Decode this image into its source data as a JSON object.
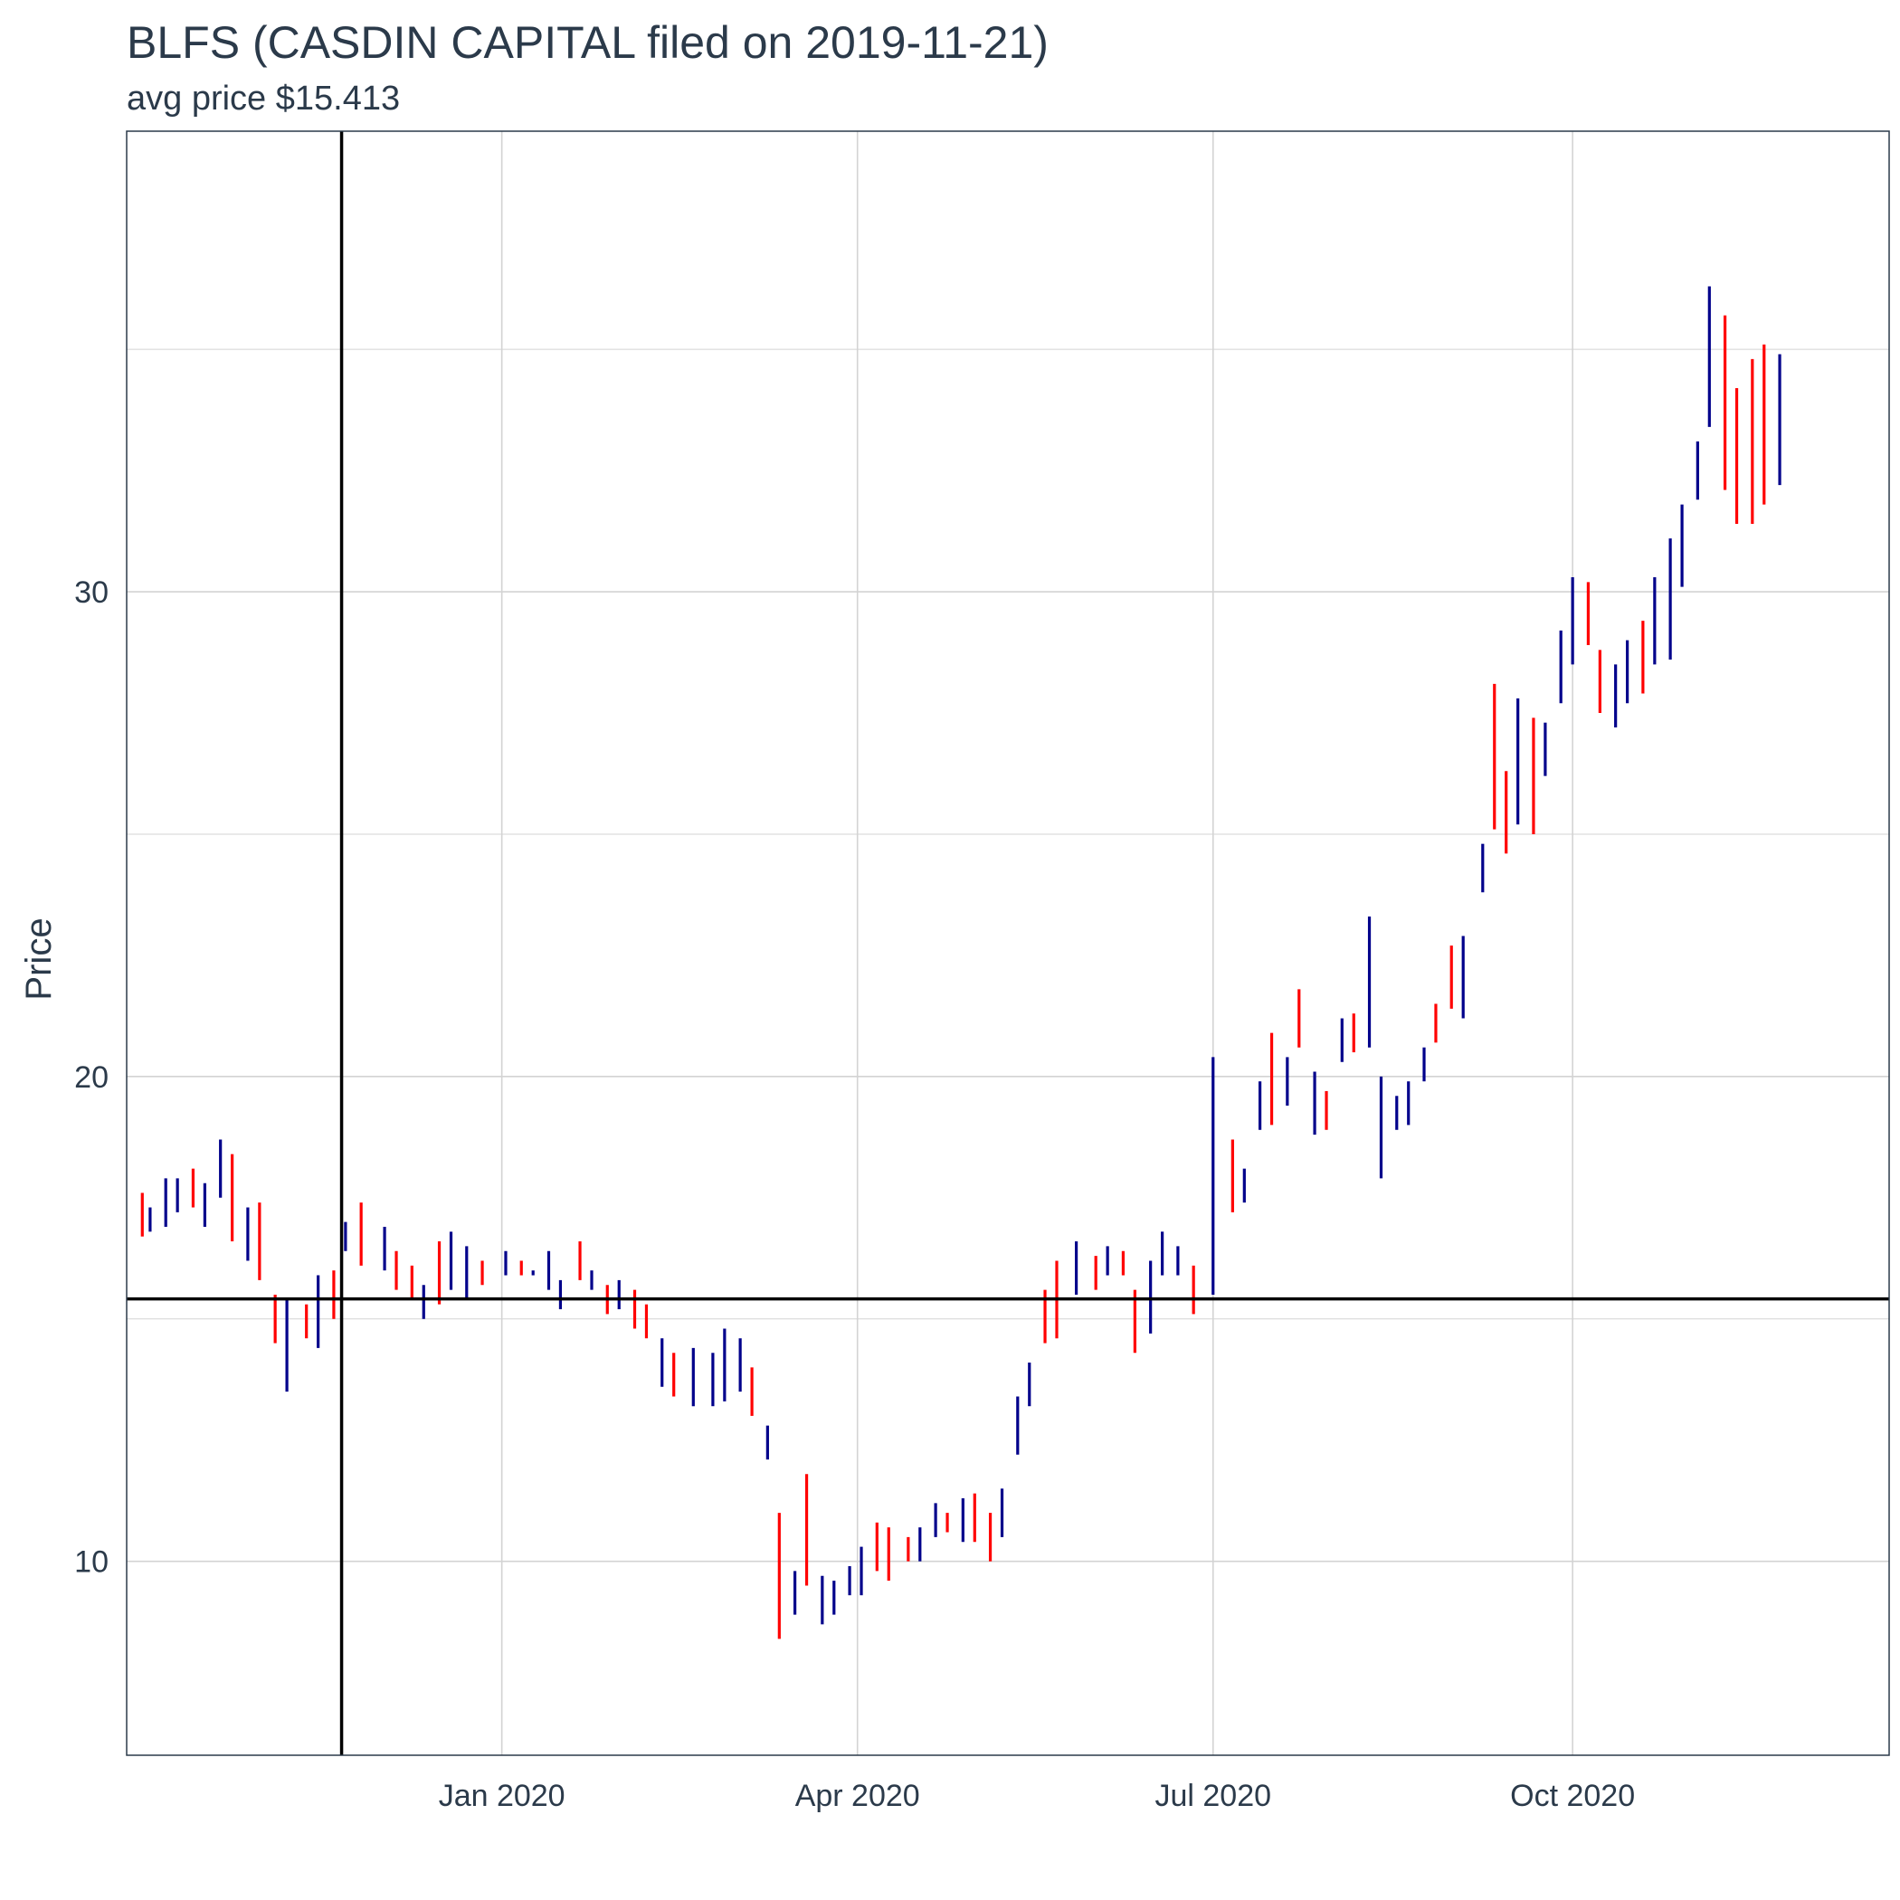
{
  "chart_data": {
    "type": "ohlc",
    "title": "BLFS (CASDIN CAPITAL filed on 2019-11-21)",
    "subtitle": "avg price $15.413",
    "ylabel": "Price",
    "xlabel": "",
    "ylim": [
      6.0,
      39.5
    ],
    "xlim": [
      "2019-09-27",
      "2020-12-21"
    ],
    "y_ticks": [
      10,
      20,
      30
    ],
    "x_ticks": [
      {
        "date": "2020-01-01",
        "label": "Jan 2020"
      },
      {
        "date": "2020-04-01",
        "label": "Apr 2020"
      },
      {
        "date": "2020-07-01",
        "label": "Jul 2020"
      },
      {
        "date": "2020-10-01",
        "label": "Oct 2020"
      }
    ],
    "avg_price_line": 15.413,
    "filing_date_line": "2019-11-21",
    "grid": true,
    "colors": {
      "up": "#00008b",
      "down": "#ff0000",
      "ref": "#000000",
      "grid": "#d3d3d3",
      "text": "#2b3a4a"
    },
    "series": [
      {
        "date": "2019-10-01",
        "low": 16.7,
        "high": 17.6,
        "dir": "down"
      },
      {
        "date": "2019-10-03",
        "low": 16.8,
        "high": 17.3,
        "dir": "up"
      },
      {
        "date": "2019-10-07",
        "low": 16.9,
        "high": 17.9,
        "dir": "up"
      },
      {
        "date": "2019-10-10",
        "low": 17.2,
        "high": 17.9,
        "dir": "up"
      },
      {
        "date": "2019-10-14",
        "low": 17.3,
        "high": 18.1,
        "dir": "down"
      },
      {
        "date": "2019-10-17",
        "low": 16.9,
        "high": 17.8,
        "dir": "up"
      },
      {
        "date": "2019-10-21",
        "low": 17.5,
        "high": 18.7,
        "dir": "up"
      },
      {
        "date": "2019-10-24",
        "low": 16.6,
        "high": 18.4,
        "dir": "down"
      },
      {
        "date": "2019-10-28",
        "low": 16.2,
        "high": 17.3,
        "dir": "up"
      },
      {
        "date": "2019-10-31",
        "low": 15.8,
        "high": 17.4,
        "dir": "down"
      },
      {
        "date": "2019-11-04",
        "low": 14.5,
        "high": 15.5,
        "dir": "down"
      },
      {
        "date": "2019-11-07",
        "low": 13.5,
        "high": 15.4,
        "dir": "up"
      },
      {
        "date": "2019-11-12",
        "low": 14.6,
        "high": 15.3,
        "dir": "down"
      },
      {
        "date": "2019-11-15",
        "low": 14.4,
        "high": 15.9,
        "dir": "up"
      },
      {
        "date": "2019-11-19",
        "low": 15.0,
        "high": 16.0,
        "dir": "down"
      },
      {
        "date": "2019-11-22",
        "low": 16.4,
        "high": 17.0,
        "dir": "up"
      },
      {
        "date": "2019-11-26",
        "low": 16.1,
        "high": 17.4,
        "dir": "down"
      },
      {
        "date": "2019-12-02",
        "low": 16.0,
        "high": 16.9,
        "dir": "up"
      },
      {
        "date": "2019-12-05",
        "low": 15.6,
        "high": 16.4,
        "dir": "down"
      },
      {
        "date": "2019-12-09",
        "low": 15.4,
        "high": 16.1,
        "dir": "down"
      },
      {
        "date": "2019-12-12",
        "low": 15.0,
        "high": 15.7,
        "dir": "up"
      },
      {
        "date": "2019-12-16",
        "low": 15.3,
        "high": 16.6,
        "dir": "down"
      },
      {
        "date": "2019-12-19",
        "low": 15.6,
        "high": 16.8,
        "dir": "up"
      },
      {
        "date": "2019-12-23",
        "low": 15.4,
        "high": 16.5,
        "dir": "up"
      },
      {
        "date": "2019-12-27",
        "low": 15.7,
        "high": 16.2,
        "dir": "down"
      },
      {
        "date": "2020-01-02",
        "low": 15.9,
        "high": 16.4,
        "dir": "up"
      },
      {
        "date": "2020-01-06",
        "low": 15.9,
        "high": 16.2,
        "dir": "down"
      },
      {
        "date": "2020-01-09",
        "low": 15.9,
        "high": 16.0,
        "dir": "up"
      },
      {
        "date": "2020-01-13",
        "low": 15.6,
        "high": 16.4,
        "dir": "up"
      },
      {
        "date": "2020-01-16",
        "low": 15.2,
        "high": 15.8,
        "dir": "up"
      },
      {
        "date": "2020-01-21",
        "low": 15.8,
        "high": 16.6,
        "dir": "down"
      },
      {
        "date": "2020-01-24",
        "low": 15.6,
        "high": 16.0,
        "dir": "up"
      },
      {
        "date": "2020-01-28",
        "low": 15.1,
        "high": 15.7,
        "dir": "down"
      },
      {
        "date": "2020-01-31",
        "low": 15.2,
        "high": 15.8,
        "dir": "up"
      },
      {
        "date": "2020-02-04",
        "low": 14.8,
        "high": 15.6,
        "dir": "down"
      },
      {
        "date": "2020-02-07",
        "low": 14.6,
        "high": 15.3,
        "dir": "down"
      },
      {
        "date": "2020-02-11",
        "low": 13.6,
        "high": 14.6,
        "dir": "up"
      },
      {
        "date": "2020-02-14",
        "low": 13.4,
        "high": 14.3,
        "dir": "down"
      },
      {
        "date": "2020-02-19",
        "low": 13.2,
        "high": 14.4,
        "dir": "up"
      },
      {
        "date": "2020-02-24",
        "low": 13.2,
        "high": 14.3,
        "dir": "up"
      },
      {
        "date": "2020-02-27",
        "low": 13.3,
        "high": 14.8,
        "dir": "up"
      },
      {
        "date": "2020-03-02",
        "low": 13.5,
        "high": 14.6,
        "dir": "up"
      },
      {
        "date": "2020-03-05",
        "low": 13.0,
        "high": 14.0,
        "dir": "down"
      },
      {
        "date": "2020-03-09",
        "low": 12.1,
        "high": 12.8,
        "dir": "up"
      },
      {
        "date": "2020-03-12",
        "low": 8.4,
        "high": 11.0,
        "dir": "down"
      },
      {
        "date": "2020-03-16",
        "low": 8.9,
        "high": 9.8,
        "dir": "up"
      },
      {
        "date": "2020-03-19",
        "low": 9.5,
        "high": 11.8,
        "dir": "down"
      },
      {
        "date": "2020-03-23",
        "low": 8.7,
        "high": 9.7,
        "dir": "up"
      },
      {
        "date": "2020-03-26",
        "low": 8.9,
        "high": 9.6,
        "dir": "up"
      },
      {
        "date": "2020-03-30",
        "low": 9.3,
        "high": 9.9,
        "dir": "up"
      },
      {
        "date": "2020-04-02",
        "low": 9.3,
        "high": 10.3,
        "dir": "up"
      },
      {
        "date": "2020-04-06",
        "low": 9.8,
        "high": 10.8,
        "dir": "down"
      },
      {
        "date": "2020-04-09",
        "low": 9.6,
        "high": 10.7,
        "dir": "down"
      },
      {
        "date": "2020-04-14",
        "low": 10.0,
        "high": 10.5,
        "dir": "down"
      },
      {
        "date": "2020-04-17",
        "low": 10.0,
        "high": 10.7,
        "dir": "up"
      },
      {
        "date": "2020-04-21",
        "low": 10.5,
        "high": 11.2,
        "dir": "up"
      },
      {
        "date": "2020-04-24",
        "low": 10.6,
        "high": 11.0,
        "dir": "down"
      },
      {
        "date": "2020-04-28",
        "low": 10.4,
        "high": 11.3,
        "dir": "up"
      },
      {
        "date": "2020-05-01",
        "low": 10.4,
        "high": 11.4,
        "dir": "down"
      },
      {
        "date": "2020-05-05",
        "low": 10.0,
        "high": 11.0,
        "dir": "down"
      },
      {
        "date": "2020-05-08",
        "low": 10.5,
        "high": 11.5,
        "dir": "up"
      },
      {
        "date": "2020-05-12",
        "low": 12.2,
        "high": 13.4,
        "dir": "up"
      },
      {
        "date": "2020-05-15",
        "low": 13.2,
        "high": 14.1,
        "dir": "up"
      },
      {
        "date": "2020-05-19",
        "low": 14.5,
        "high": 15.6,
        "dir": "down"
      },
      {
        "date": "2020-05-22",
        "low": 14.6,
        "high": 16.2,
        "dir": "down"
      },
      {
        "date": "2020-05-27",
        "low": 15.5,
        "high": 16.6,
        "dir": "up"
      },
      {
        "date": "2020-06-01",
        "low": 15.6,
        "high": 16.3,
        "dir": "down"
      },
      {
        "date": "2020-06-04",
        "low": 15.9,
        "high": 16.5,
        "dir": "up"
      },
      {
        "date": "2020-06-08",
        "low": 15.9,
        "high": 16.4,
        "dir": "down"
      },
      {
        "date": "2020-06-11",
        "low": 14.3,
        "high": 15.6,
        "dir": "down"
      },
      {
        "date": "2020-06-15",
        "low": 14.7,
        "high": 16.2,
        "dir": "up"
      },
      {
        "date": "2020-06-18",
        "low": 15.9,
        "high": 16.8,
        "dir": "up"
      },
      {
        "date": "2020-06-22",
        "low": 15.9,
        "high": 16.5,
        "dir": "up"
      },
      {
        "date": "2020-06-26",
        "low": 15.1,
        "high": 16.1,
        "dir": "down"
      },
      {
        "date": "2020-07-01",
        "low": 15.5,
        "high": 20.4,
        "dir": "up"
      },
      {
        "date": "2020-07-06",
        "low": 17.2,
        "high": 18.7,
        "dir": "down"
      },
      {
        "date": "2020-07-09",
        "low": 17.4,
        "high": 18.1,
        "dir": "up"
      },
      {
        "date": "2020-07-13",
        "low": 18.9,
        "high": 19.9,
        "dir": "up"
      },
      {
        "date": "2020-07-16",
        "low": 19.0,
        "high": 20.9,
        "dir": "down"
      },
      {
        "date": "2020-07-20",
        "low": 19.4,
        "high": 20.4,
        "dir": "up"
      },
      {
        "date": "2020-07-23",
        "low": 20.6,
        "high": 21.8,
        "dir": "down"
      },
      {
        "date": "2020-07-27",
        "low": 18.8,
        "high": 20.1,
        "dir": "up"
      },
      {
        "date": "2020-07-30",
        "low": 18.9,
        "high": 19.7,
        "dir": "down"
      },
      {
        "date": "2020-08-03",
        "low": 20.3,
        "high": 21.2,
        "dir": "up"
      },
      {
        "date": "2020-08-06",
        "low": 20.5,
        "high": 21.3,
        "dir": "down"
      },
      {
        "date": "2020-08-10",
        "low": 20.6,
        "high": 23.3,
        "dir": "up"
      },
      {
        "date": "2020-08-13",
        "low": 17.9,
        "high": 20.0,
        "dir": "up"
      },
      {
        "date": "2020-08-17",
        "low": 18.9,
        "high": 19.6,
        "dir": "up"
      },
      {
        "date": "2020-08-20",
        "low": 19.0,
        "high": 19.9,
        "dir": "up"
      },
      {
        "date": "2020-08-24",
        "low": 19.9,
        "high": 20.6,
        "dir": "up"
      },
      {
        "date": "2020-08-27",
        "low": 20.7,
        "high": 21.5,
        "dir": "down"
      },
      {
        "date": "2020-08-31",
        "low": 21.4,
        "high": 22.7,
        "dir": "down"
      },
      {
        "date": "2020-09-03",
        "low": 21.2,
        "high": 22.9,
        "dir": "up"
      },
      {
        "date": "2020-09-08",
        "low": 23.8,
        "high": 24.8,
        "dir": "up"
      },
      {
        "date": "2020-09-11",
        "low": 25.1,
        "high": 28.1,
        "dir": "down"
      },
      {
        "date": "2020-09-14",
        "low": 24.6,
        "high": 26.3,
        "dir": "down"
      },
      {
        "date": "2020-09-17",
        "low": 25.2,
        "high": 27.8,
        "dir": "up"
      },
      {
        "date": "2020-09-21",
        "low": 25.0,
        "high": 27.4,
        "dir": "down"
      },
      {
        "date": "2020-09-24",
        "low": 26.2,
        "high": 27.3,
        "dir": "up"
      },
      {
        "date": "2020-09-28",
        "low": 27.7,
        "high": 29.2,
        "dir": "up"
      },
      {
        "date": "2020-10-01",
        "low": 28.5,
        "high": 30.3,
        "dir": "up"
      },
      {
        "date": "2020-10-05",
        "low": 28.9,
        "high": 30.2,
        "dir": "down"
      },
      {
        "date": "2020-10-08",
        "low": 27.5,
        "high": 28.8,
        "dir": "down"
      },
      {
        "date": "2020-10-12",
        "low": 27.2,
        "high": 28.5,
        "dir": "up"
      },
      {
        "date": "2020-10-15",
        "low": 27.7,
        "high": 29.0,
        "dir": "up"
      },
      {
        "date": "2020-10-19",
        "low": 27.9,
        "high": 29.4,
        "dir": "down"
      },
      {
        "date": "2020-10-22",
        "low": 28.5,
        "high": 30.3,
        "dir": "up"
      },
      {
        "date": "2020-10-26",
        "low": 28.6,
        "high": 31.1,
        "dir": "up"
      },
      {
        "date": "2020-10-29",
        "low": 30.1,
        "high": 31.8,
        "dir": "up"
      },
      {
        "date": "2020-11-02",
        "low": 31.9,
        "high": 33.1,
        "dir": "up"
      },
      {
        "date": "2020-11-05",
        "low": 33.4,
        "high": 36.3,
        "dir": "up"
      },
      {
        "date": "2020-11-09",
        "low": 32.1,
        "high": 35.7,
        "dir": "down"
      },
      {
        "date": "2020-11-12",
        "low": 31.4,
        "high": 34.2,
        "dir": "down"
      },
      {
        "date": "2020-11-16",
        "low": 31.4,
        "high": 34.8,
        "dir": "down"
      },
      {
        "date": "2020-11-19",
        "low": 31.8,
        "high": 35.1,
        "dir": "down"
      },
      {
        "date": "2020-11-23",
        "low": 32.2,
        "high": 34.9,
        "dir": "up"
      }
    ]
  }
}
